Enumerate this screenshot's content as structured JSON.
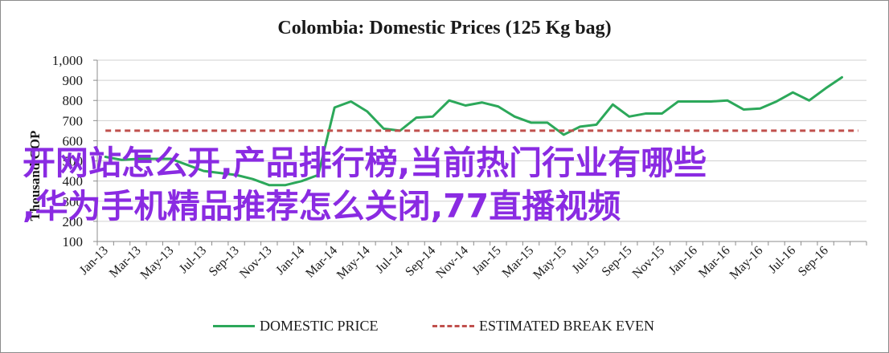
{
  "chart_data": {
    "type": "line",
    "title": "Colombia:  Domestic Prices (125 Kg bag)",
    "ylabel": "Thousand COP",
    "xlabel": "",
    "ylim": [
      100,
      1000
    ],
    "yticks": [
      100,
      200,
      300,
      400,
      500,
      600,
      700,
      800,
      900,
      1000
    ],
    "ytick_labels": [
      "100",
      "200",
      "300",
      "400",
      "500",
      "600",
      "700",
      "800",
      "900",
      "1,000"
    ],
    "x": [
      "Jan-13",
      "Feb-13",
      "Mar-13",
      "Apr-13",
      "May-13",
      "Jun-13",
      "Jul-13",
      "Aug-13",
      "Sep-13",
      "Oct-13",
      "Nov-13",
      "Dec-13",
      "Jan-14",
      "Feb-14",
      "Mar-14",
      "Apr-14",
      "May-14",
      "Jun-14",
      "Jul-14",
      "Aug-14",
      "Sep-14",
      "Oct-14",
      "Nov-14",
      "Dec-14",
      "Jan-15",
      "Feb-15",
      "Mar-15",
      "Apr-15",
      "May-15",
      "Jun-15",
      "Jul-15",
      "Aug-15",
      "Sep-15",
      "Oct-15",
      "Nov-15",
      "Dec-15",
      "Jan-16",
      "Feb-16",
      "Mar-16",
      "Apr-16",
      "May-16",
      "Jun-16",
      "Jul-16",
      "Aug-16",
      "Sep-16",
      "Oct-16",
      "Nov-16"
    ],
    "xtick_labels": [
      "Jan-13",
      "Mar-13",
      "May-13",
      "Jul-13",
      "Sep-13",
      "Nov-13",
      "Jan-14",
      "Mar-14",
      "May-14",
      "Jul-14",
      "Sep-14",
      "Nov-14",
      "Jan-15",
      "Mar-15",
      "May-15",
      "Jul-15",
      "Sep-15",
      "Nov-15",
      "Jan-16",
      "Mar-16",
      "May-16",
      "Jul-16",
      "Sep-16"
    ],
    "series": [
      {
        "name": "DOMESTIC PRICE",
        "color": "#2ca85a",
        "style": "solid",
        "values": [
          520,
          505,
          510,
          510,
          510,
          480,
          450,
          440,
          430,
          410,
          380,
          380,
          400,
          430,
          765,
          795,
          745,
          660,
          650,
          715,
          720,
          800,
          775,
          790,
          770,
          720,
          690,
          690,
          630,
          670,
          680,
          780,
          720,
          735,
          735,
          795,
          795,
          795,
          800,
          755,
          760,
          795,
          840,
          800,
          860,
          915,
          null
        ]
      },
      {
        "name": "ESTIMATED BREAK EVEN",
        "color": "#c0504d",
        "style": "dashed",
        "values": [
          650,
          650,
          650,
          650,
          650,
          650,
          650,
          650,
          650,
          650,
          650,
          650,
          650,
          650,
          650,
          650,
          650,
          650,
          650,
          650,
          650,
          650,
          650,
          650,
          650,
          650,
          650,
          650,
          650,
          650,
          650,
          650,
          650,
          650,
          650,
          650,
          650,
          650,
          650,
          650,
          650,
          650,
          650,
          650,
          650,
          650,
          650
        ]
      }
    ],
    "grid": true,
    "legend_position": "bottom"
  },
  "overlay_text": [
    "开网站怎么开,产品排行榜,当前热门行业有哪些",
    ",华为手机精品推荐怎么关闭,77直播视频"
  ]
}
